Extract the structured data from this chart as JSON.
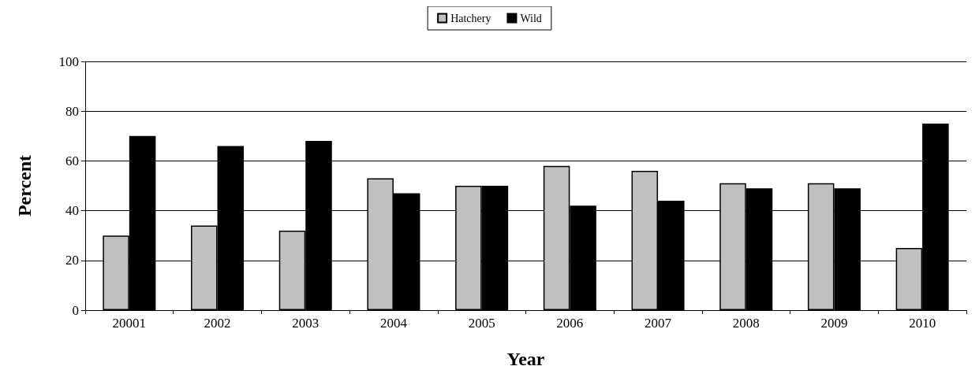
{
  "chart_data": {
    "type": "bar",
    "xlabel": "Year",
    "ylabel": "Percent",
    "categories": [
      "20001",
      "2002",
      "2003",
      "2004",
      "2005",
      "2006",
      "2007",
      "2008",
      "2009",
      "2010"
    ],
    "series": [
      {
        "name": "Hatchery",
        "color": "#c0c0c0",
        "values": [
          30,
          34,
          32,
          53,
          50,
          58,
          56,
          51,
          51,
          25
        ]
      },
      {
        "name": "Wild",
        "color": "#000000",
        "values": [
          70,
          66,
          68,
          47,
          50,
          42,
          44,
          49,
          49,
          75
        ]
      }
    ],
    "ylim": [
      0,
      100
    ],
    "yticks": [
      0,
      20,
      40,
      60,
      80,
      100
    ],
    "grid": "y",
    "legend": "top"
  }
}
